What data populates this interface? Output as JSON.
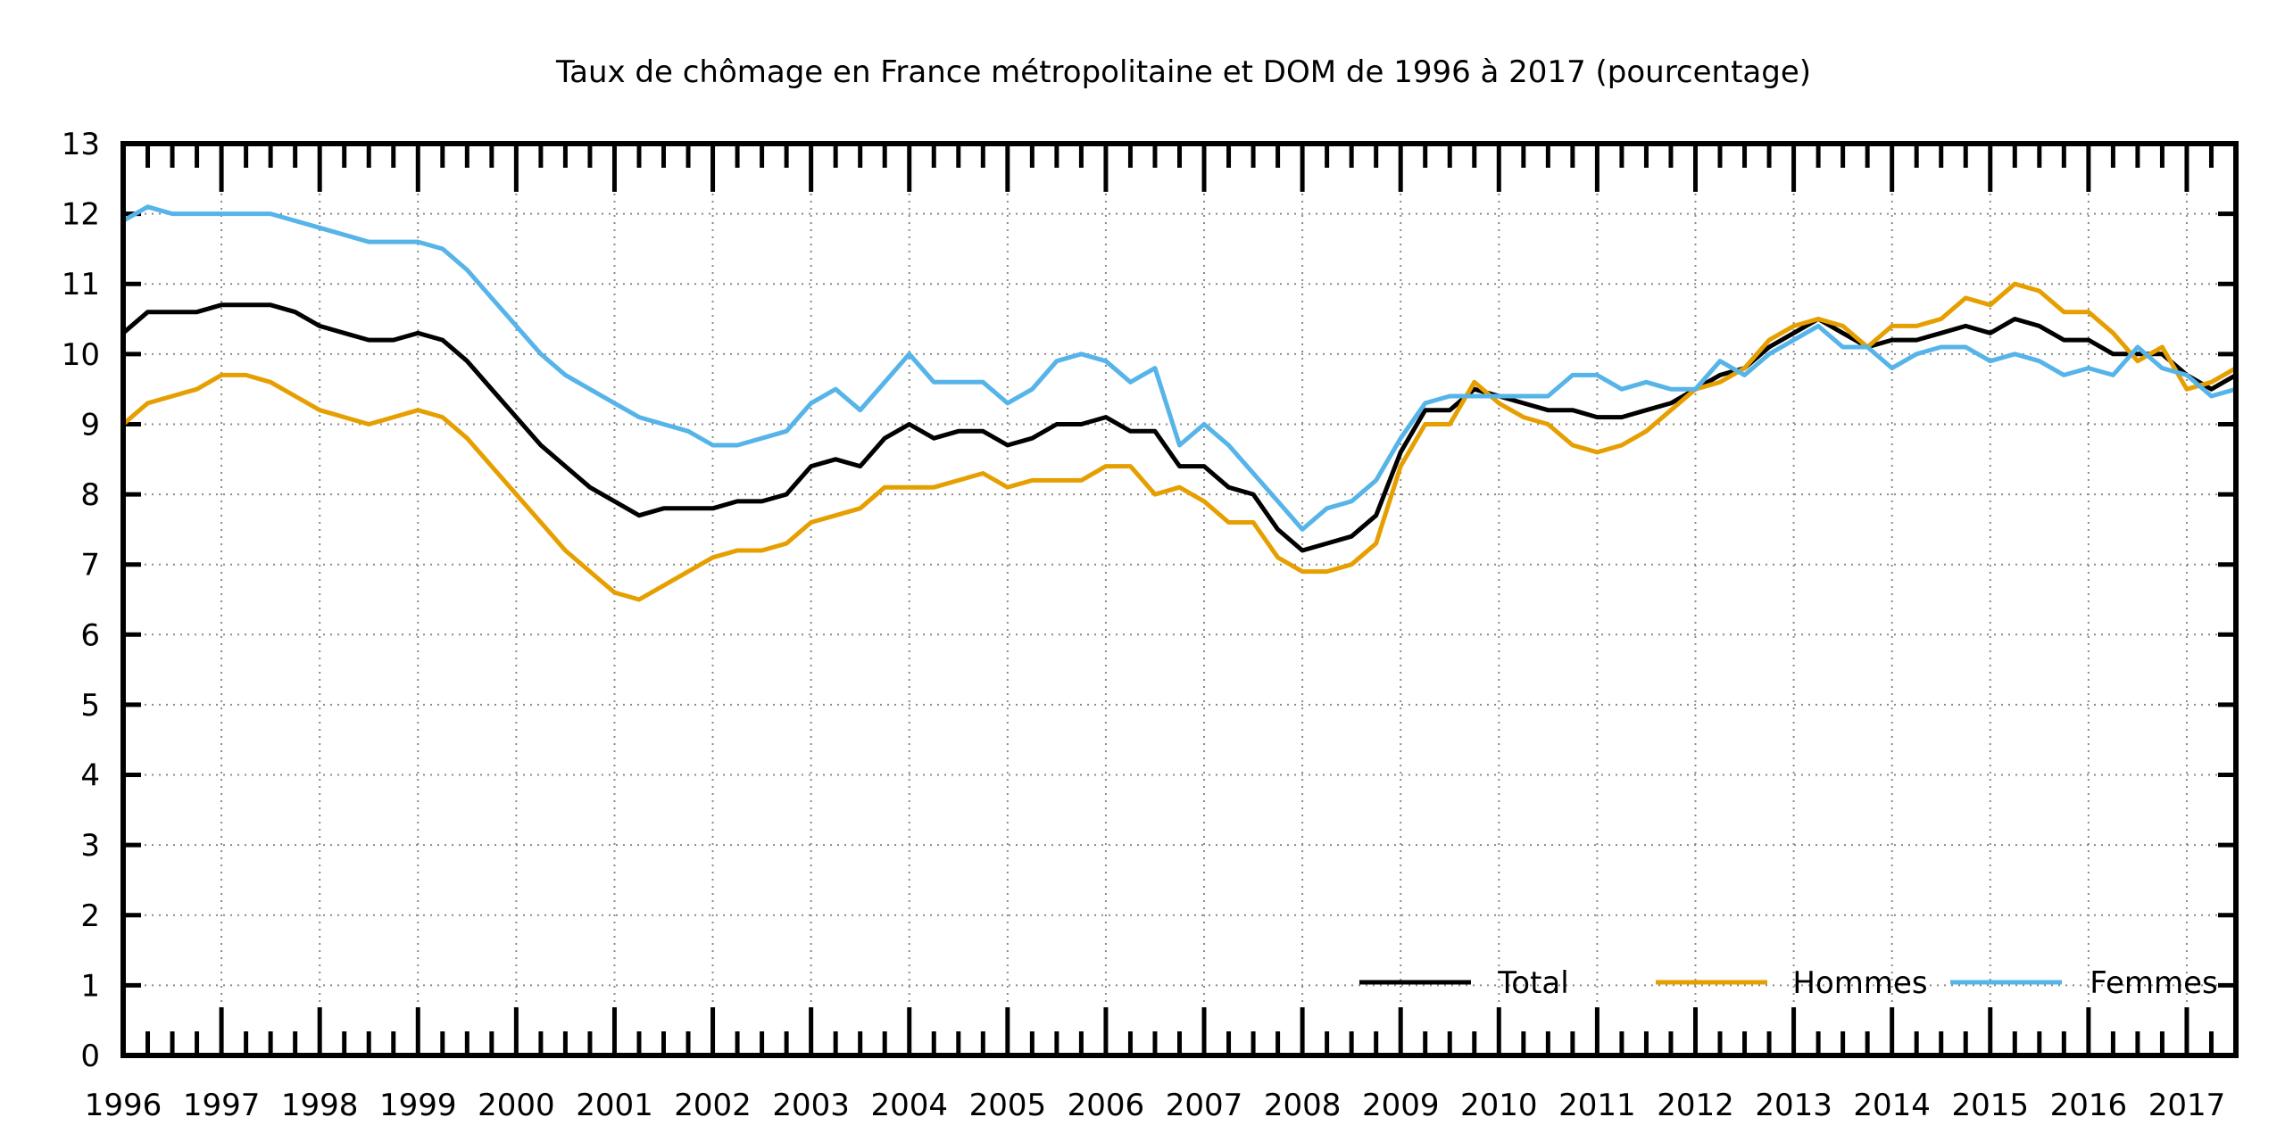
{
  "chart_data": {
    "type": "line",
    "title": "Taux de chômage en France métropolitaine et DOM de 1996 à 2017 (pourcentage)",
    "xlabel": "",
    "ylabel": "",
    "xlim": [
      1996,
      2017.5
    ],
    "ylim": [
      0,
      13
    ],
    "x_ticks": [
      "1996",
      "1997",
      "1998",
      "1999",
      "2000",
      "2001",
      "2002",
      "2003",
      "2004",
      "2005",
      "2006",
      "2007",
      "2008",
      "2009",
      "2010",
      "2011",
      "2012",
      "2013",
      "2014",
      "2015",
      "2016",
      "2017"
    ],
    "y_ticks": [
      "0",
      "1",
      "2",
      "3",
      "4",
      "5",
      "6",
      "7",
      "8",
      "9",
      "10",
      "11",
      "12",
      "13"
    ],
    "grid": true,
    "legend_position": "bottom-right",
    "x_start": 1996,
    "x_step": 0.25,
    "series": [
      {
        "name": "Total",
        "color": "#000000",
        "values": [
          10.3,
          10.6,
          10.6,
          10.6,
          10.7,
          10.7,
          10.7,
          10.6,
          10.4,
          10.3,
          10.2,
          10.2,
          10.3,
          10.2,
          9.9,
          9.5,
          9.1,
          8.7,
          8.4,
          8.1,
          7.9,
          7.7,
          7.8,
          7.8,
          7.8,
          7.9,
          7.9,
          8.0,
          8.4,
          8.5,
          8.4,
          8.8,
          9.0,
          8.8,
          8.9,
          8.9,
          8.7,
          8.8,
          9.0,
          9.0,
          9.1,
          8.9,
          8.9,
          8.4,
          8.4,
          8.1,
          8.0,
          7.5,
          7.2,
          7.3,
          7.4,
          7.7,
          8.6,
          9.2,
          9.2,
          9.5,
          9.4,
          9.3,
          9.2,
          9.2,
          9.1,
          9.1,
          9.2,
          9.3,
          9.5,
          9.7,
          9.8,
          10.1,
          10.3,
          10.5,
          10.3,
          10.1,
          10.2,
          10.2,
          10.3,
          10.4,
          10.3,
          10.5,
          10.4,
          10.2,
          10.2,
          10.0,
          10.0,
          10.0,
          9.7,
          9.5,
          9.7
        ]
      },
      {
        "name": "Hommes",
        "color": "#e69f00",
        "values": [
          9.0,
          9.3,
          9.4,
          9.5,
          9.7,
          9.7,
          9.6,
          9.4,
          9.2,
          9.1,
          9.0,
          9.1,
          9.2,
          9.1,
          8.8,
          8.4,
          8.0,
          7.6,
          7.2,
          6.9,
          6.6,
          6.5,
          6.7,
          6.9,
          7.1,
          7.2,
          7.2,
          7.3,
          7.6,
          7.7,
          7.8,
          8.1,
          8.1,
          8.1,
          8.2,
          8.3,
          8.1,
          8.2,
          8.2,
          8.2,
          8.4,
          8.4,
          8.0,
          8.1,
          7.9,
          7.6,
          7.6,
          7.1,
          6.9,
          6.9,
          7.0,
          7.3,
          8.4,
          9.0,
          9.0,
          9.6,
          9.3,
          9.1,
          9.0,
          8.7,
          8.6,
          8.7,
          8.9,
          9.2,
          9.5,
          9.6,
          9.8,
          10.2,
          10.4,
          10.5,
          10.4,
          10.1,
          10.4,
          10.4,
          10.5,
          10.8,
          10.7,
          11.0,
          10.9,
          10.6,
          10.6,
          10.3,
          9.9,
          10.1,
          9.5,
          9.6,
          9.8
        ]
      },
      {
        "name": "Femmes",
        "color": "#56b4e9",
        "values": [
          11.9,
          12.1,
          12.0,
          12.0,
          12.0,
          12.0,
          12.0,
          11.9,
          11.8,
          11.7,
          11.6,
          11.6,
          11.6,
          11.5,
          11.2,
          10.8,
          10.4,
          10.0,
          9.7,
          9.5,
          9.3,
          9.1,
          9.0,
          8.9,
          8.7,
          8.7,
          8.8,
          8.9,
          9.3,
          9.5,
          9.2,
          9.6,
          10.0,
          9.6,
          9.6,
          9.6,
          9.3,
          9.5,
          9.9,
          10.0,
          9.9,
          9.6,
          9.8,
          8.7,
          9.0,
          8.7,
          8.3,
          7.9,
          7.5,
          7.8,
          7.9,
          8.2,
          8.8,
          9.3,
          9.4,
          9.4,
          9.4,
          9.4,
          9.4,
          9.7,
          9.7,
          9.5,
          9.6,
          9.5,
          9.5,
          9.9,
          9.7,
          10.0,
          10.2,
          10.4,
          10.1,
          10.1,
          9.8,
          10.0,
          10.1,
          10.1,
          9.9,
          10.0,
          9.9,
          9.7,
          9.8,
          9.7,
          10.1,
          9.8,
          9.7,
          9.4,
          9.5
        ]
      }
    ]
  }
}
